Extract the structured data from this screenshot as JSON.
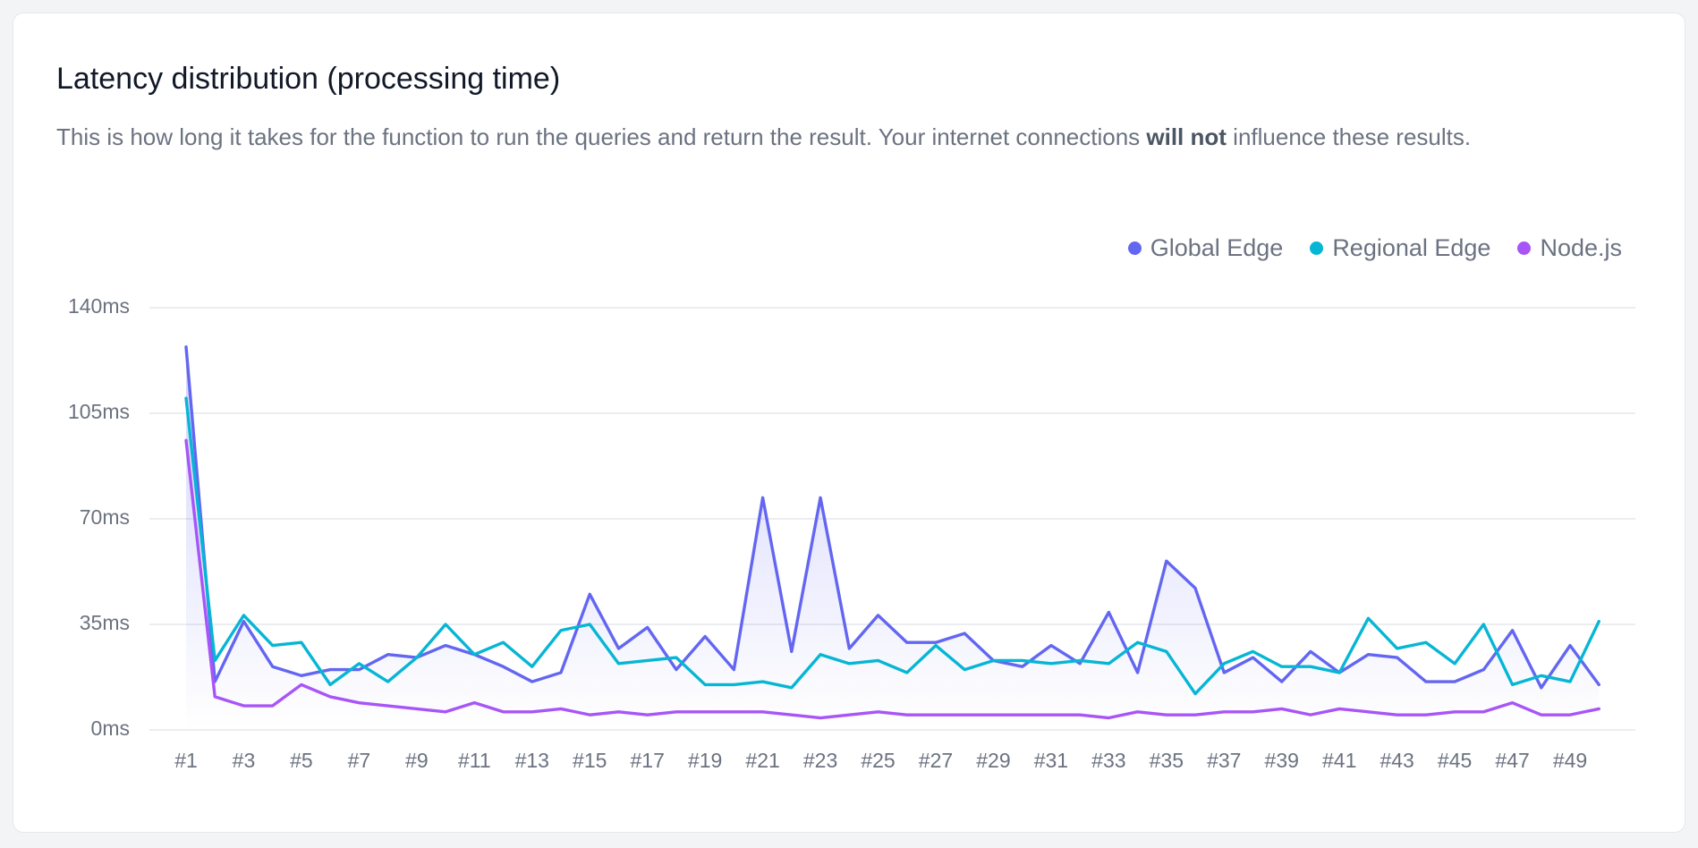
{
  "chart_data": {
    "type": "line",
    "title": "Latency distribution (processing time)",
    "description": [
      "This is how long it takes for the function to run the queries and return the result. Your internet connections ",
      "will not",
      " influence these results."
    ],
    "categories": [
      "#1",
      null,
      "#3",
      null,
      "#5",
      null,
      "#7",
      null,
      "#9",
      null,
      "#11",
      null,
      "#13",
      null,
      "#15",
      null,
      "#17",
      null,
      "#19",
      null,
      "#21",
      null,
      "#23",
      null,
      "#25",
      null,
      "#27",
      null,
      "#29",
      null,
      "#31",
      null,
      "#33",
      null,
      "#35",
      null,
      "#37",
      null,
      "#39",
      null,
      "#41",
      null,
      "#43",
      null,
      "#45",
      null,
      "#47",
      null,
      "#49",
      null
    ],
    "ylim": [
      0,
      140
    ],
    "yticks": [
      {
        "value": 0,
        "label": "0ms"
      },
      {
        "value": 35,
        "label": "35ms"
      },
      {
        "value": 70,
        "label": "70ms"
      },
      {
        "value": 105,
        "label": "105ms"
      },
      {
        "value": 140,
        "label": "140ms"
      }
    ],
    "grid": true,
    "legend": "top-right",
    "series": [
      {
        "name": "Global Edge",
        "color": "#6366f1",
        "area": true,
        "values": [
          127,
          16,
          36,
          21,
          18,
          20,
          20,
          25,
          24,
          28,
          25,
          21,
          16,
          19,
          45,
          27,
          34,
          20,
          31,
          20,
          77,
          26,
          77,
          27,
          38,
          29,
          29,
          32,
          23,
          21,
          28,
          22,
          39,
          19,
          56,
          47,
          19,
          24,
          16,
          26,
          19,
          25,
          24,
          16,
          16,
          20,
          33,
          14,
          28,
          15
        ]
      },
      {
        "name": "Regional Edge",
        "color": "#06b6d4",
        "values": [
          110,
          23,
          38,
          28,
          29,
          15,
          22,
          16,
          24,
          35,
          25,
          29,
          21,
          33,
          35,
          22,
          23,
          24,
          15,
          15,
          16,
          14,
          25,
          22,
          23,
          19,
          28,
          20,
          23,
          23,
          22,
          23,
          22,
          29,
          26,
          12,
          22,
          26,
          21,
          21,
          19,
          37,
          27,
          29,
          22,
          35,
          15,
          18,
          16,
          36
        ]
      },
      {
        "name": "Node.js",
        "color": "#a855f7",
        "values": [
          96,
          11,
          8,
          8,
          15,
          11,
          9,
          8,
          7,
          6,
          9,
          6,
          6,
          7,
          5,
          6,
          5,
          6,
          6,
          6,
          6,
          5,
          4,
          5,
          6,
          5,
          5,
          5,
          5,
          5,
          5,
          5,
          4,
          6,
          5,
          5,
          6,
          6,
          7,
          5,
          7,
          6,
          5,
          5,
          6,
          6,
          9,
          5,
          5,
          7
        ]
      }
    ]
  }
}
